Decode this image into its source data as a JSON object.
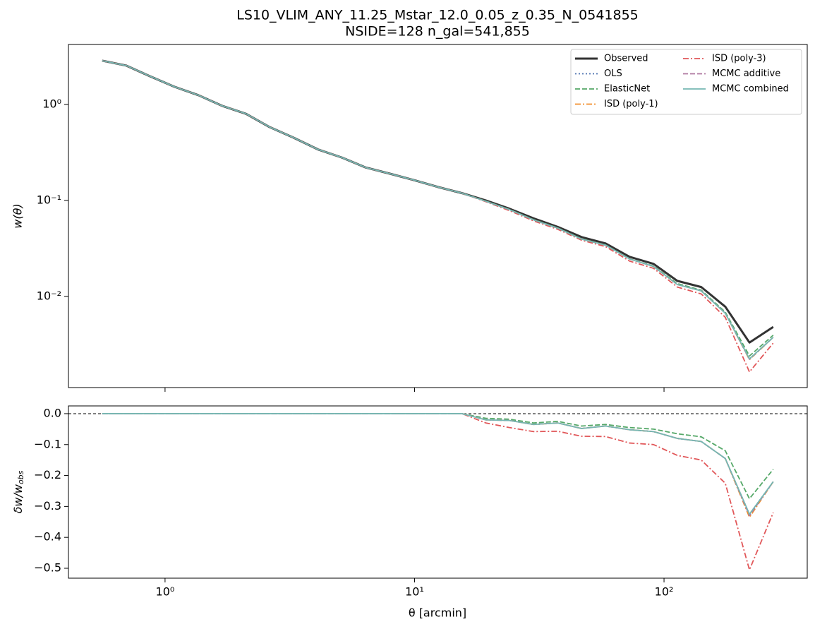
{
  "chart_data": [
    {
      "type": "line",
      "title": "LS10_VLIM_ANY_11.25_Mstar_12.0_0.05_z_0.35_N_0541855",
      "subtitle": "NSIDE=128  n_gal=541,855",
      "ylabel": "w(θ)",
      "xlog": true,
      "ylog": true,
      "xlim": [
        0.41,
        375
      ],
      "xticks": [
        1,
        10,
        100
      ],
      "ylim": [
        0.00112,
        4.22
      ],
      "yticks": [
        {
          "value": 1,
          "label": "10⁰"
        },
        {
          "value": 0.1,
          "label": "10⁻¹"
        },
        {
          "value": 0.01,
          "label": "10⁻²"
        }
      ],
      "legend": "upper right",
      "legend_columns": 2,
      "x": [
        0.56,
        0.7,
        0.87,
        1.09,
        1.36,
        1.69,
        2.11,
        2.63,
        3.28,
        4.1,
        5.11,
        6.38,
        7.96,
        9.93,
        12.4,
        15.5,
        19.3,
        24.0,
        30.0,
        37.5,
        46.7,
        58.3,
        72.8,
        90.8,
        113,
        141,
        176,
        220,
        274
      ],
      "series": [
        {
          "name": "Observed",
          "color": "#333333",
          "linestyle": "solid",
          "linewidth": 3,
          "values": [
            2.86,
            2.54,
            1.97,
            1.53,
            1.25,
            0.97,
            0.8,
            0.58,
            0.45,
            0.34,
            0.28,
            0.22,
            0.19,
            0.163,
            0.138,
            0.119,
            0.1,
            0.082,
            0.065,
            0.053,
            0.0415,
            0.0356,
            0.0258,
            0.0218,
            0.0145,
            0.0125,
            0.0078,
            0.0033,
            0.0048
          ]
        },
        {
          "name": "OLS",
          "color": "#4c72b0",
          "linestyle": "dotted",
          "linewidth": 1.8,
          "values": [
            2.86,
            2.54,
            1.97,
            1.53,
            1.25,
            0.97,
            0.8,
            0.58,
            0.45,
            0.34,
            0.28,
            0.22,
            0.19,
            0.163,
            0.138,
            0.119,
            0.098,
            0.0802,
            0.0627,
            0.0514,
            0.0395,
            0.0342,
            0.0245,
            0.0205,
            0.0133,
            0.0114,
            0.00667,
            0.00223,
            0.00374
          ]
        },
        {
          "name": "ElasticNet",
          "color": "#55a868",
          "linestyle": "dashed",
          "linewidth": 1.8,
          "values": [
            2.86,
            2.54,
            1.97,
            1.53,
            1.25,
            0.97,
            0.8,
            0.58,
            0.45,
            0.34,
            0.28,
            0.22,
            0.19,
            0.163,
            0.138,
            0.119,
            0.0985,
            0.0805,
            0.0631,
            0.0517,
            0.0398,
            0.0344,
            0.0246,
            0.0207,
            0.0136,
            0.0116,
            0.00686,
            0.00239,
            0.00394
          ]
        },
        {
          "name": "ISD (poly-1)",
          "color": "#f28e2b",
          "linestyle": "dashdot",
          "linewidth": 1.8,
          "values": [
            2.86,
            2.54,
            1.97,
            1.53,
            1.25,
            0.97,
            0.8,
            0.58,
            0.45,
            0.34,
            0.28,
            0.22,
            0.19,
            0.163,
            0.138,
            0.119,
            0.098,
            0.0802,
            0.0627,
            0.0514,
            0.0395,
            0.0342,
            0.0245,
            0.0205,
            0.0133,
            0.0114,
            0.00667,
            0.00219,
            0.00374
          ]
        },
        {
          "name": "ISD (poly-3)",
          "color": "#e15759",
          "linestyle": "dashdot",
          "linewidth": 1.8,
          "values": [
            2.86,
            2.54,
            1.97,
            1.53,
            1.25,
            0.97,
            0.8,
            0.58,
            0.45,
            0.34,
            0.28,
            0.22,
            0.19,
            0.163,
            0.138,
            0.119,
            0.097,
            0.0783,
            0.0612,
            0.05,
            0.0385,
            0.033,
            0.0233,
            0.0196,
            0.0125,
            0.0106,
            0.00605,
            0.00163,
            0.00326
          ]
        },
        {
          "name": "MCMC additive",
          "color": "#b07aa1",
          "linestyle": "dashed",
          "linewidth": 1.8,
          "values": [
            2.86,
            2.54,
            1.97,
            1.53,
            1.25,
            0.97,
            0.8,
            0.58,
            0.45,
            0.34,
            0.28,
            0.22,
            0.19,
            0.163,
            0.138,
            0.119,
            0.098,
            0.0802,
            0.0627,
            0.0514,
            0.0395,
            0.0342,
            0.0245,
            0.0205,
            0.0133,
            0.0114,
            0.00667,
            0.00221,
            0.00374
          ]
        },
        {
          "name": "MCMC combined",
          "color": "#76b7b2",
          "linestyle": "solid",
          "linewidth": 1.8,
          "values": [
            2.86,
            2.54,
            1.97,
            1.53,
            1.25,
            0.97,
            0.8,
            0.58,
            0.45,
            0.34,
            0.28,
            0.22,
            0.19,
            0.163,
            0.138,
            0.119,
            0.098,
            0.0802,
            0.0627,
            0.0514,
            0.0395,
            0.0342,
            0.0245,
            0.0205,
            0.0133,
            0.0114,
            0.00667,
            0.00223,
            0.00374
          ]
        }
      ]
    },
    {
      "type": "line",
      "ylabel": "δw/w",
      "ylabel_sub": "obs",
      "xlabel": "θ [arcmin]",
      "xlog": true,
      "ylog": false,
      "xlim": [
        0.41,
        375
      ],
      "xticks": [
        {
          "value": 1,
          "label": "10⁰"
        },
        {
          "value": 10,
          "label": "10¹"
        },
        {
          "value": 100,
          "label": "10²"
        }
      ],
      "ylim": [
        -0.532,
        0.025
      ],
      "yticks": [
        {
          "value": 0,
          "label": "0.0"
        },
        {
          "value": -0.1,
          "label": "−0.1"
        },
        {
          "value": -0.2,
          "label": "−0.2"
        },
        {
          "value": -0.3,
          "label": "−0.3"
        },
        {
          "value": -0.4,
          "label": "−0.4"
        },
        {
          "value": -0.5,
          "label": "−0.5"
        }
      ],
      "hline": 0,
      "x": [
        0.56,
        0.7,
        0.87,
        1.09,
        1.36,
        1.69,
        2.11,
        2.63,
        3.28,
        4.1,
        5.11,
        6.38,
        7.96,
        9.93,
        12.4,
        15.5,
        19.3,
        24.0,
        30.0,
        37.5,
        46.7,
        58.3,
        72.8,
        90.8,
        113,
        141,
        176,
        220,
        274
      ],
      "series": [
        {
          "color": "#4c72b0",
          "linestyle": "dotted",
          "linewidth": 1.8,
          "values": [
            0,
            0,
            0,
            0,
            0,
            0,
            0,
            0,
            0,
            0,
            0,
            0,
            0,
            0,
            0,
            0,
            -0.02,
            -0.022,
            -0.035,
            -0.03,
            -0.048,
            -0.04,
            -0.052,
            -0.058,
            -0.08,
            -0.09,
            -0.145,
            -0.325,
            -0.22
          ]
        },
        {
          "color": "#55a868",
          "linestyle": "dashed",
          "linewidth": 1.8,
          "values": [
            0,
            0,
            0,
            0,
            0,
            0,
            0,
            0,
            0,
            0,
            0,
            0,
            0,
            0,
            0,
            0,
            -0.015,
            -0.018,
            -0.03,
            -0.025,
            -0.04,
            -0.035,
            -0.045,
            -0.05,
            -0.065,
            -0.075,
            -0.12,
            -0.275,
            -0.18
          ]
        },
        {
          "color": "#f28e2b",
          "linestyle": "dashdot",
          "linewidth": 1.8,
          "values": [
            0,
            0,
            0,
            0,
            0,
            0,
            0,
            0,
            0,
            0,
            0,
            0,
            0,
            0,
            0,
            0,
            -0.02,
            -0.022,
            -0.035,
            -0.03,
            -0.048,
            -0.04,
            -0.052,
            -0.058,
            -0.08,
            -0.09,
            -0.145,
            -0.335,
            -0.22
          ]
        },
        {
          "color": "#e15759",
          "linestyle": "dashdot",
          "linewidth": 1.8,
          "values": [
            0,
            0,
            0,
            0,
            0,
            0,
            0,
            0,
            0,
            0,
            0,
            0,
            0,
            0,
            0,
            0,
            -0.03,
            -0.045,
            -0.058,
            -0.057,
            -0.073,
            -0.074,
            -0.095,
            -0.1,
            -0.135,
            -0.15,
            -0.225,
            -0.505,
            -0.32
          ]
        },
        {
          "color": "#b07aa1",
          "linestyle": "dashed",
          "linewidth": 1.8,
          "values": [
            0,
            0,
            0,
            0,
            0,
            0,
            0,
            0,
            0,
            0,
            0,
            0,
            0,
            0,
            0,
            0,
            -0.02,
            -0.022,
            -0.035,
            -0.03,
            -0.048,
            -0.04,
            -0.052,
            -0.058,
            -0.08,
            -0.09,
            -0.145,
            -0.33,
            -0.22
          ]
        },
        {
          "color": "#76b7b2",
          "linestyle": "solid",
          "linewidth": 1.8,
          "values": [
            0,
            0,
            0,
            0,
            0,
            0,
            0,
            0,
            0,
            0,
            0,
            0,
            0,
            0,
            0,
            0,
            -0.02,
            -0.022,
            -0.035,
            -0.03,
            -0.048,
            -0.04,
            -0.052,
            -0.058,
            -0.08,
            -0.09,
            -0.145,
            -0.325,
            -0.22
          ]
        }
      ]
    }
  ]
}
